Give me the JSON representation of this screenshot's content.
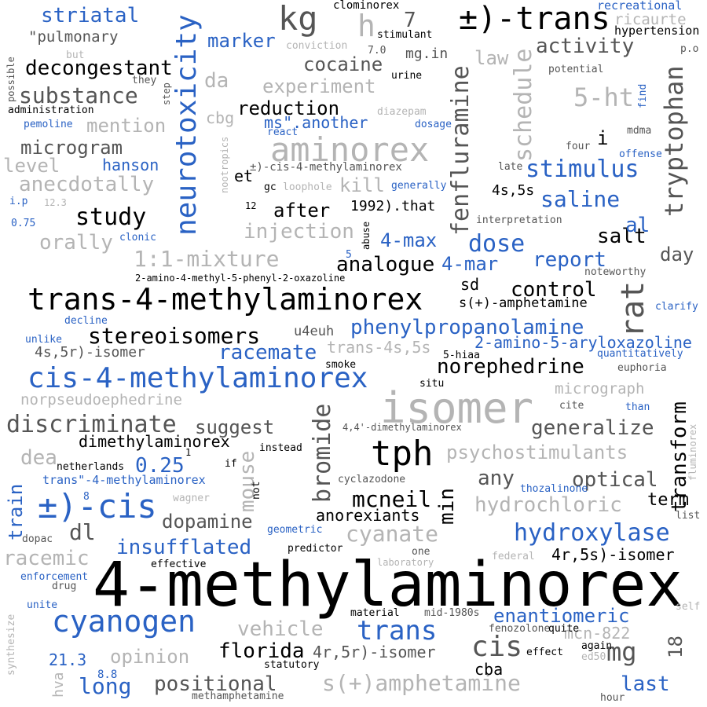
{
  "title": "word cloud",
  "palette": {
    "black": "#000000",
    "dark_grey": "#555555",
    "light_grey": "#b4b4b4",
    "blue": "#2a62c4"
  },
  "words": [
    "4-methylaminorex",
    "isomer",
    "trans-4-methylaminorex",
    "cis-4-methylaminorex",
    "aminorex",
    "neurotoxicity",
    "±)-trans",
    "±)-cis",
    "tph",
    "kg",
    "h",
    "7",
    "fenfluramine",
    "tryptophan",
    "schedule",
    "5-ht",
    "rat",
    "stimulus",
    "saline",
    "striatal",
    "\"pulmonary",
    "decongestant",
    "substance",
    "mention",
    "microgram",
    "level",
    "anecdotally",
    "hanson",
    "study",
    "orally",
    "1:1-mixture",
    "marker",
    "da",
    "cbg",
    "reduction",
    "cocaine",
    "experiment",
    "ms\".another",
    "injection",
    "kill",
    "after",
    "1992).that",
    "4s,5s",
    "4-max",
    "dose",
    "4-mar",
    "analogue",
    "report",
    "salt",
    "al",
    "day",
    "control",
    "sd",
    "s(+)-amphetamine",
    "norephedrine",
    "phenylpropanolamine",
    "2-amino-5-aryloxazoline",
    "trans-4s,5s",
    "stereoisomers",
    "racemate",
    "4s,5r)-isomer",
    "norpseudoephedrine",
    "discriminate",
    "suggest",
    "dimethylaminorex",
    "0.25",
    "dea",
    "bromide",
    "mouse",
    "mcneil",
    "min",
    "anorexiants",
    "psychostimulants",
    "generalize",
    "optical",
    "transform",
    "any",
    "term",
    "hydrochloric",
    "cyanate",
    "hydroxylase",
    "dopamine",
    "dl",
    "insufflated",
    "racemic",
    "train",
    "cyanogen",
    "vehicle",
    "trans",
    "opinion",
    "florida",
    "positional",
    "cis",
    "mg",
    "long",
    "s(+)amphetamine",
    "last",
    "enantiomeric",
    "4r,5s)-isomer",
    "4r,5r)-isomer",
    "cba",
    "18",
    "mcn-822",
    "21.3",
    "8.8",
    "activity",
    "mg.in",
    "law",
    "clominorex",
    "stimulant",
    "7.0",
    "urine",
    "conviction",
    "recreational",
    "ricaurte",
    "hypertension",
    "p.o",
    "potential",
    "find",
    "mdma",
    "four",
    "offense",
    "late",
    "i",
    "interpretation",
    "abuse",
    "generally",
    "diazepam",
    "dosage",
    "react",
    "loophole",
    "nootropics",
    "et",
    "gc",
    "±)-cis-4-methylaminorex",
    "12",
    "5",
    "2-amino-4-methyl-5-phenyl-2-oxazoline",
    "noteworthy",
    "clarify",
    "u4euh",
    "5-hiaa",
    "quantitatively",
    "euphoria",
    "smoke",
    "situ",
    "micrograph",
    "cite",
    "than",
    "4,4'-dimethylaminorex",
    "instead",
    "cyclazodone",
    "not",
    "if",
    "thozalinone",
    "fluminorex",
    "list",
    "geometric",
    "predictor",
    "one",
    "laboratory",
    "effective",
    "federal",
    "material",
    "mid-1980s",
    "fenozolone",
    "quite",
    "again",
    "effect",
    "ed50",
    "hour",
    "self",
    "methamphetamine",
    "statutory",
    "drug",
    "unite",
    "enforcement",
    "synthesize",
    "hva",
    "dopac",
    "wagner",
    "8",
    "netherlands",
    "trans\"-4-methylaminorex",
    "1",
    "decline",
    "unlike",
    "clonic",
    "0.75",
    "i.p",
    "12.3",
    "but",
    "they",
    "step",
    "possible",
    "administration",
    "pemoline"
  ]
}
